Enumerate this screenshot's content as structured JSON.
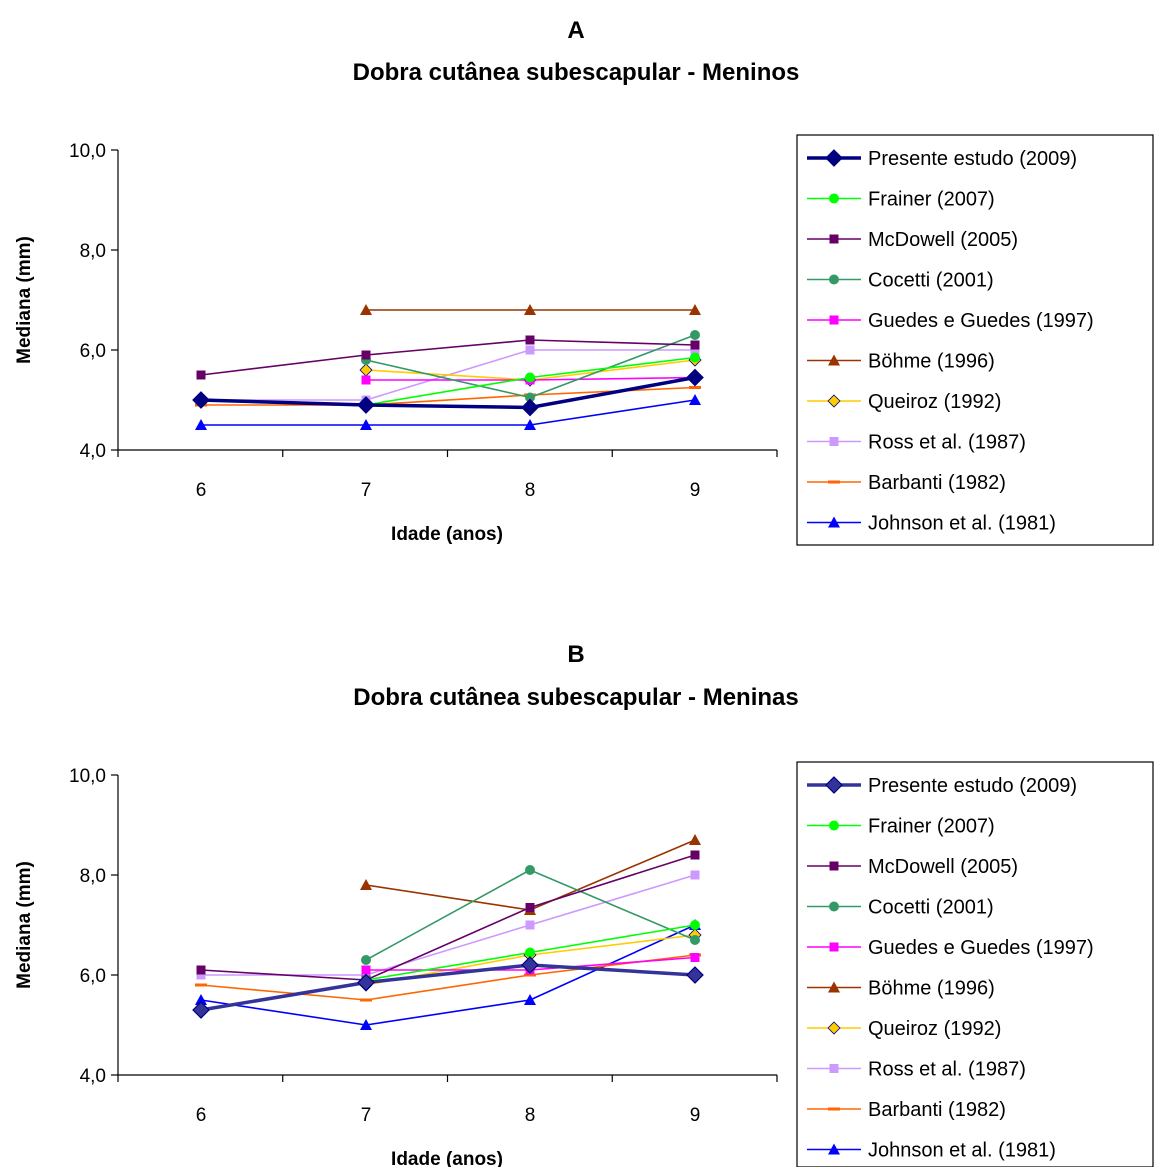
{
  "chart_data": [
    {
      "type": "line",
      "letter": "A",
      "title": "Dobra cutânea subescapular - Meninos",
      "xlabel": "Idade (anos)",
      "ylabel": "Mediana (mm)",
      "categories": [
        "6",
        "7",
        "8",
        "9"
      ],
      "ylim": [
        4,
        10
      ],
      "yticks": [
        4,
        6,
        8,
        10
      ],
      "ytick_labels": [
        "4,0",
        "6,0",
        "8,0",
        "10,0"
      ],
      "grid": false,
      "legend_position": "right",
      "series": [
        {
          "name": "Presente estudo (2009)",
          "color": "#000080",
          "marker": "diamond",
          "bold": true,
          "values": [
            5.0,
            4.9,
            4.85,
            5.45
          ]
        },
        {
          "name": "Frainer (2007)",
          "color": "#00ff00",
          "marker": "circle",
          "values": [
            null,
            4.9,
            5.45,
            5.85
          ]
        },
        {
          "name": "McDowell (2005)",
          "color": "#660066",
          "marker": "square",
          "values": [
            5.5,
            5.9,
            6.2,
            6.1
          ]
        },
        {
          "name": "Cocetti (2001)",
          "color": "#339966",
          "marker": "circle",
          "values": [
            null,
            5.8,
            5.05,
            6.3
          ]
        },
        {
          "name": "Guedes e Guedes (1997)",
          "color": "#ff00ff",
          "marker": "square",
          "values": [
            null,
            5.4,
            5.4,
            5.45
          ]
        },
        {
          "name": "Böhme (1996)",
          "color": "#993300",
          "marker": "triangle",
          "values": [
            null,
            6.8,
            6.8,
            6.8
          ]
        },
        {
          "name": "Queiroz (1992)",
          "color": "#ffcc00",
          "marker": "diamond",
          "values": [
            null,
            5.6,
            5.4,
            5.8
          ]
        },
        {
          "name": "Ross et al. (1987)",
          "color": "#cc99ff",
          "marker": "square",
          "values": [
            5.0,
            5.0,
            6.0,
            6.0
          ]
        },
        {
          "name": "Barbanti (1982)",
          "color": "#ff6600",
          "marker": "dash",
          "values": [
            4.9,
            4.9,
            5.1,
            5.25
          ]
        },
        {
          "name": "Johnson et al. (1981)",
          "color": "#0000ff",
          "marker": "triangle",
          "values": [
            4.5,
            4.5,
            4.5,
            5.0
          ]
        }
      ]
    },
    {
      "type": "line",
      "letter": "B",
      "title": "Dobra cutânea subescapular - Meninas",
      "xlabel": "Idade (anos)",
      "ylabel": "Mediana (mm)",
      "categories": [
        "6",
        "7",
        "8",
        "9"
      ],
      "ylim": [
        4,
        10
      ],
      "yticks": [
        4,
        6,
        8,
        10
      ],
      "ytick_labels": [
        "4,0",
        "6,0",
        "8,0",
        "10,0"
      ],
      "grid": false,
      "legend_position": "right",
      "series": [
        {
          "name": "Presente estudo (2009)",
          "color": "#333399",
          "marker": "diamond",
          "bold": true,
          "values": [
            5.3,
            5.85,
            6.2,
            6.0
          ]
        },
        {
          "name": "Frainer (2007)",
          "color": "#00ff00",
          "marker": "circle",
          "values": [
            null,
            5.9,
            6.45,
            7.0
          ]
        },
        {
          "name": "McDowell (2005)",
          "color": "#660066",
          "marker": "square",
          "values": [
            6.1,
            5.9,
            7.35,
            8.4
          ]
        },
        {
          "name": "Cocetti (2001)",
          "color": "#339966",
          "marker": "circle",
          "values": [
            null,
            6.3,
            8.1,
            6.7
          ]
        },
        {
          "name": "Guedes e Guedes (1997)",
          "color": "#ff00ff",
          "marker": "square",
          "values": [
            null,
            6.1,
            6.1,
            6.35
          ]
        },
        {
          "name": "Böhme (1996)",
          "color": "#993300",
          "marker": "triangle",
          "values": [
            null,
            7.8,
            7.3,
            8.7
          ]
        },
        {
          "name": "Queiroz (1992)",
          "color": "#ffcc00",
          "marker": "diamond",
          "values": [
            null,
            5.8,
            6.4,
            6.8
          ]
        },
        {
          "name": "Ross et al. (1987)",
          "color": "#cc99ff",
          "marker": "square",
          "values": [
            6.0,
            6.0,
            7.0,
            8.0
          ]
        },
        {
          "name": "Barbanti (1982)",
          "color": "#ff6600",
          "marker": "dash",
          "values": [
            5.8,
            5.5,
            6.0,
            6.4
          ]
        },
        {
          "name": "Johnson et al. (1981)",
          "color": "#0000ff",
          "marker": "triangle",
          "values": [
            5.5,
            5.0,
            5.5,
            7.0
          ]
        }
      ]
    }
  ]
}
